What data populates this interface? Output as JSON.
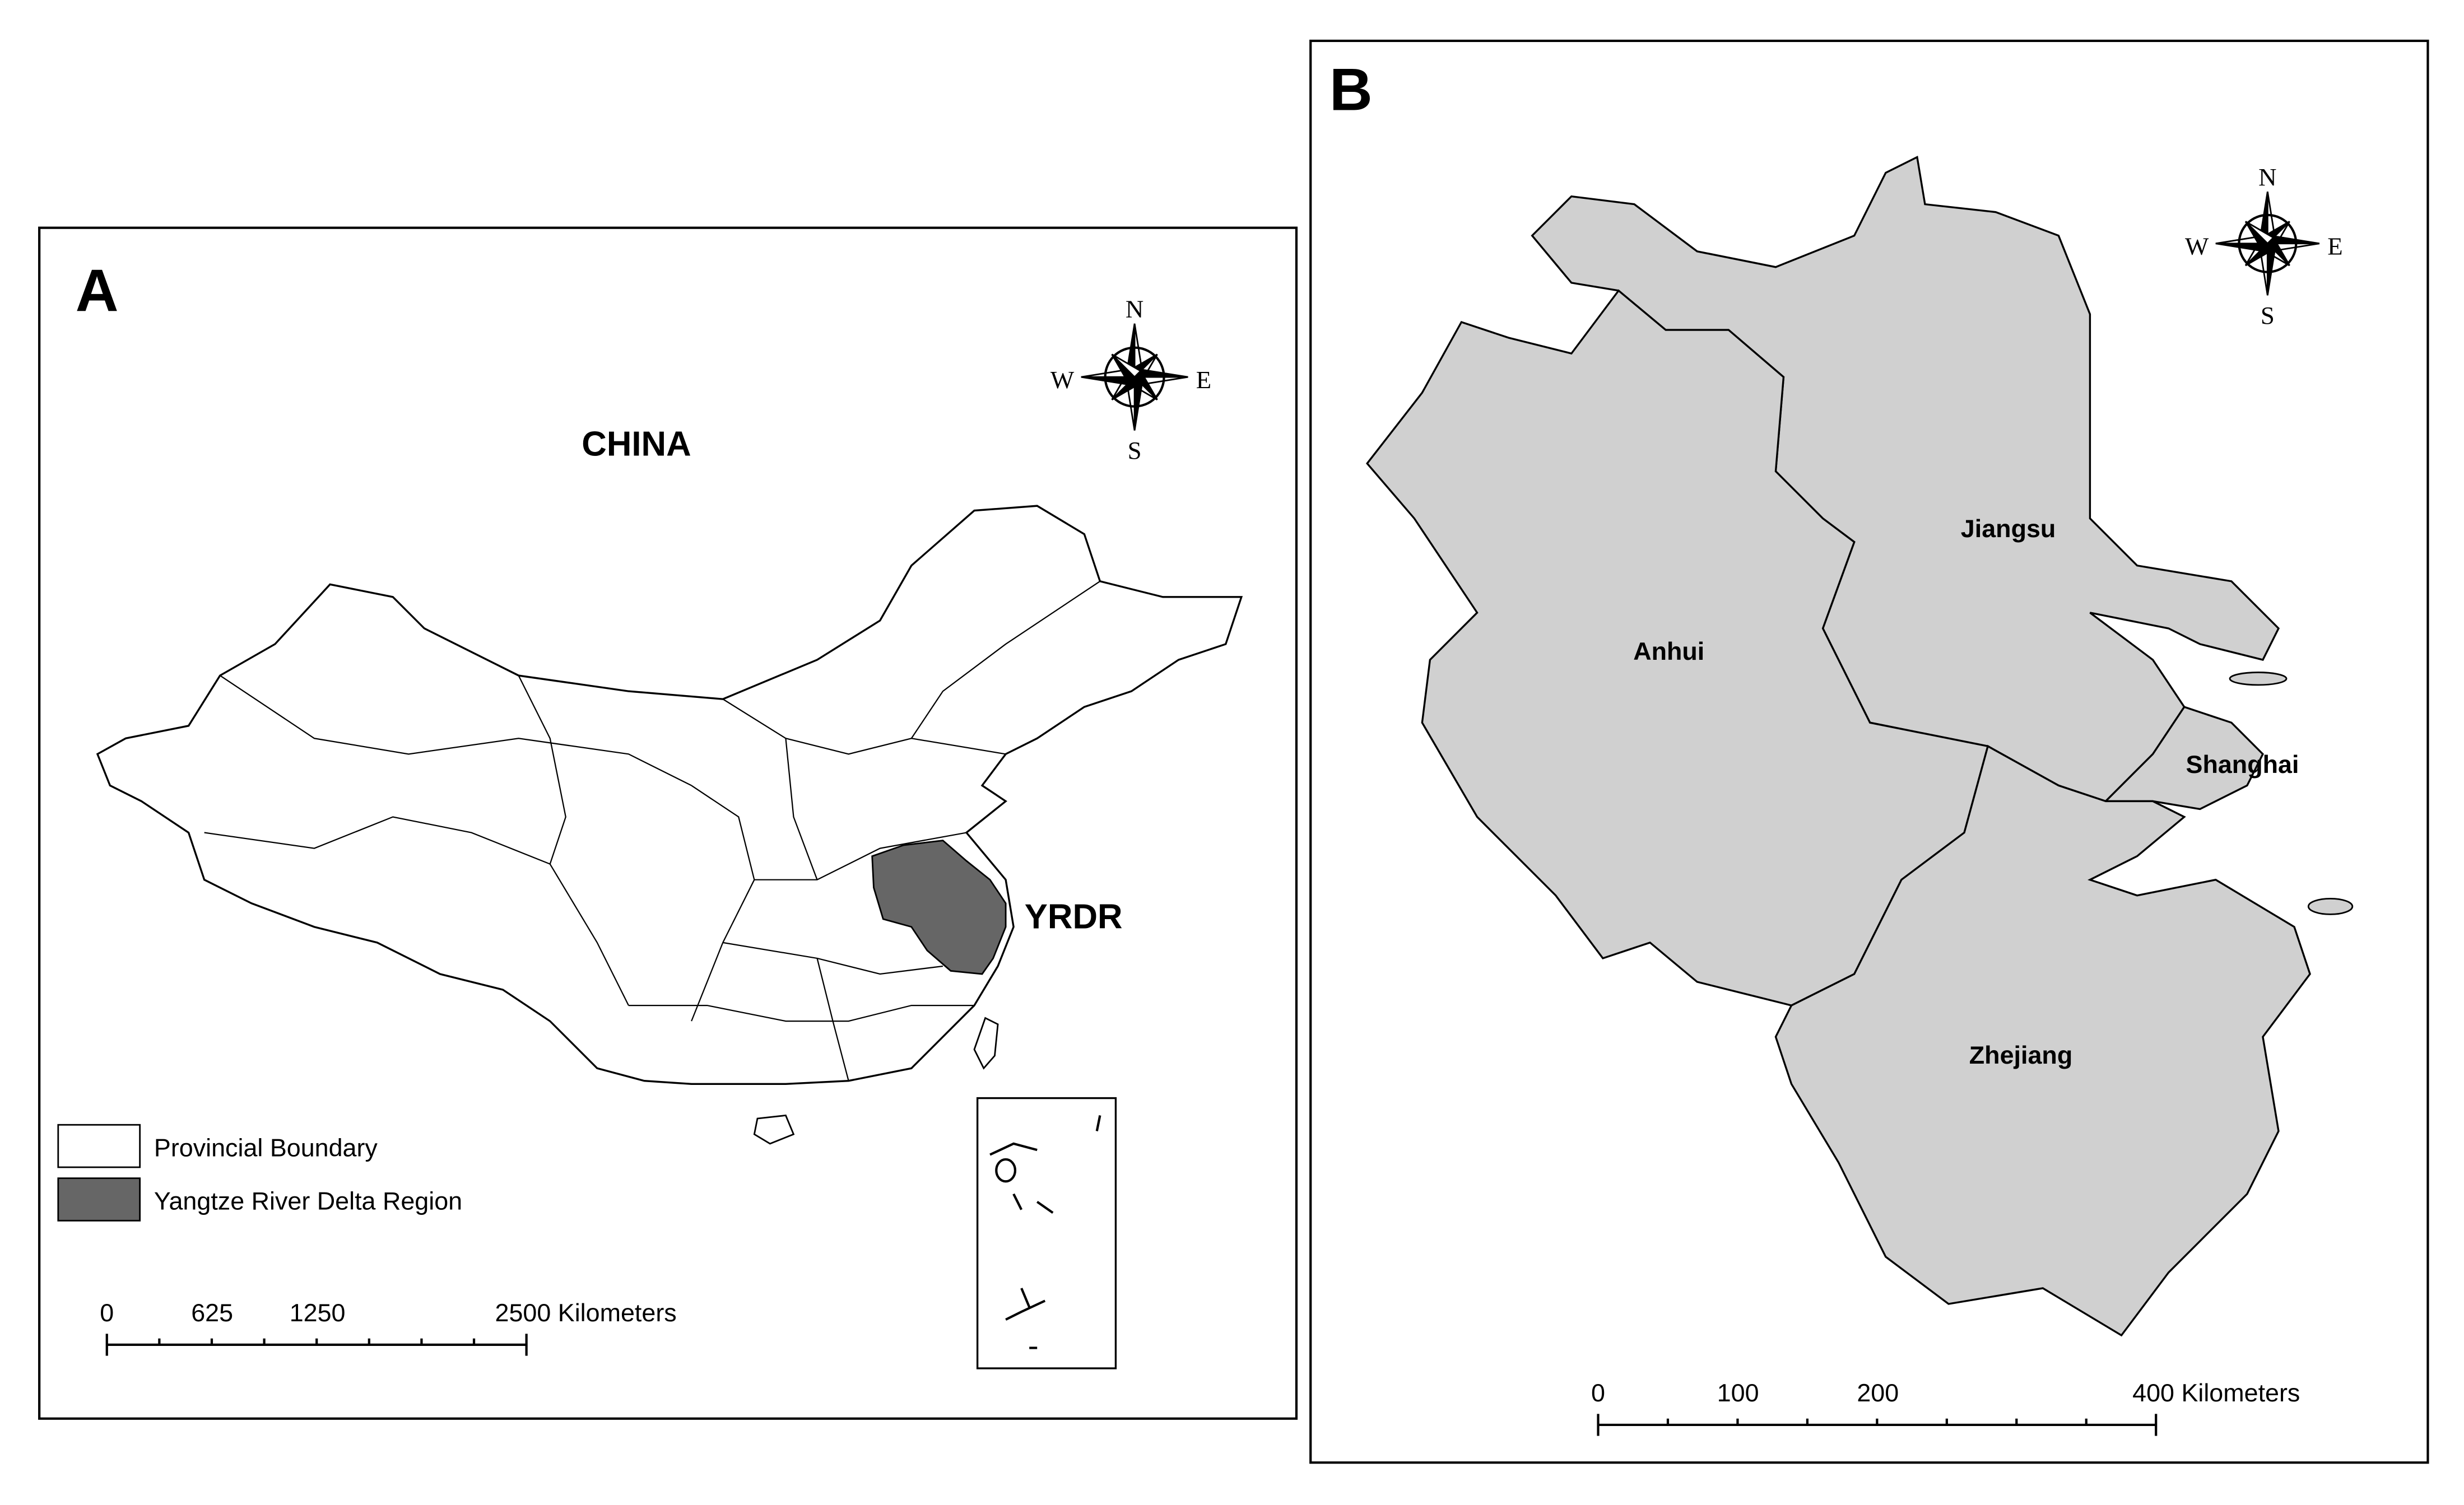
{
  "panel_a": {
    "label": "A",
    "title": "CHINA",
    "region_label": "YRDR",
    "compass": [
      "N",
      "E",
      "S",
      "W"
    ],
    "legend": [
      "Provincial Boundary",
      "Yangtze River Delta Region"
    ],
    "scale_bar": [
      "0",
      "625",
      "1250",
      "2500 Kilometers"
    ]
  },
  "panel_b": {
    "label": "B",
    "provinces": [
      "Jiangsu",
      "Anhui",
      "Shanghai",
      "Zhejiang"
    ],
    "compass": [
      "N",
      "E",
      "S",
      "W"
    ],
    "scale_bar": [
      "0",
      "100",
      "200",
      "400 Kilometers"
    ]
  }
}
